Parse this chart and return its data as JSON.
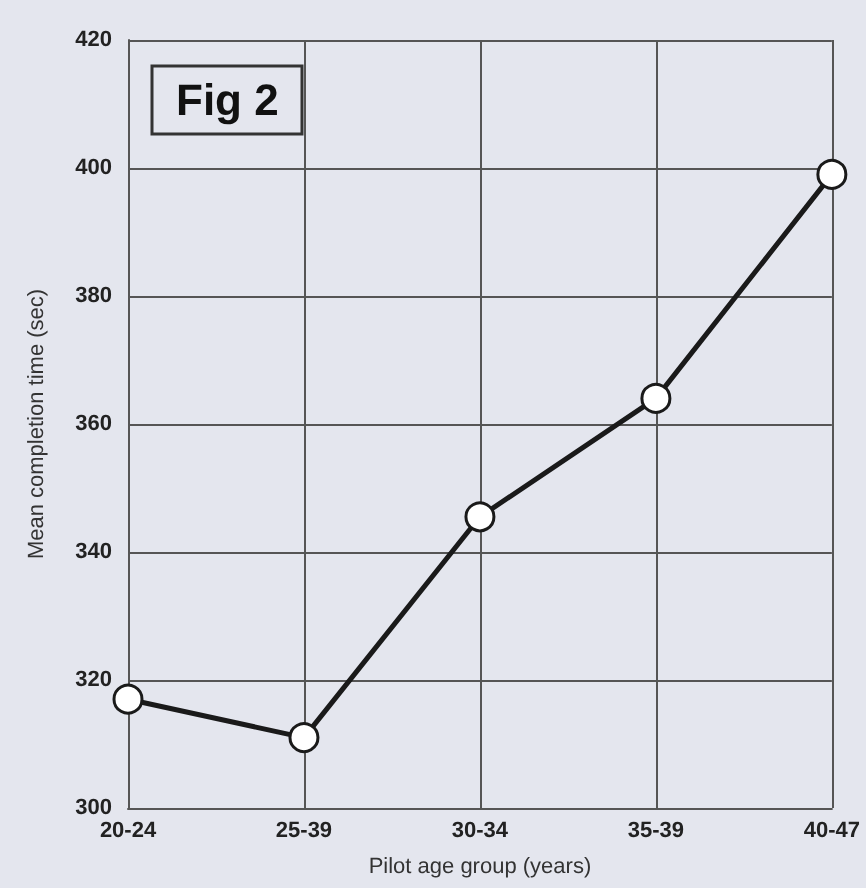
{
  "chart_data": {
    "type": "line",
    "title": "Fig 2",
    "xlabel": "Pilot age group (years)",
    "ylabel": "Mean completion time (sec)",
    "categories": [
      "20-24",
      "25-39",
      "30-34",
      "35-39",
      "40-47"
    ],
    "series": [
      {
        "color": "#1a1a1a",
        "values": [
          317,
          311,
          345.5,
          364,
          399
        ]
      }
    ],
    "ylim": [
      300,
      420
    ],
    "yticks": [
      300,
      320,
      340,
      360,
      380,
      400,
      420
    ],
    "grid": true,
    "marker": "circle",
    "line_style": "solid"
  }
}
